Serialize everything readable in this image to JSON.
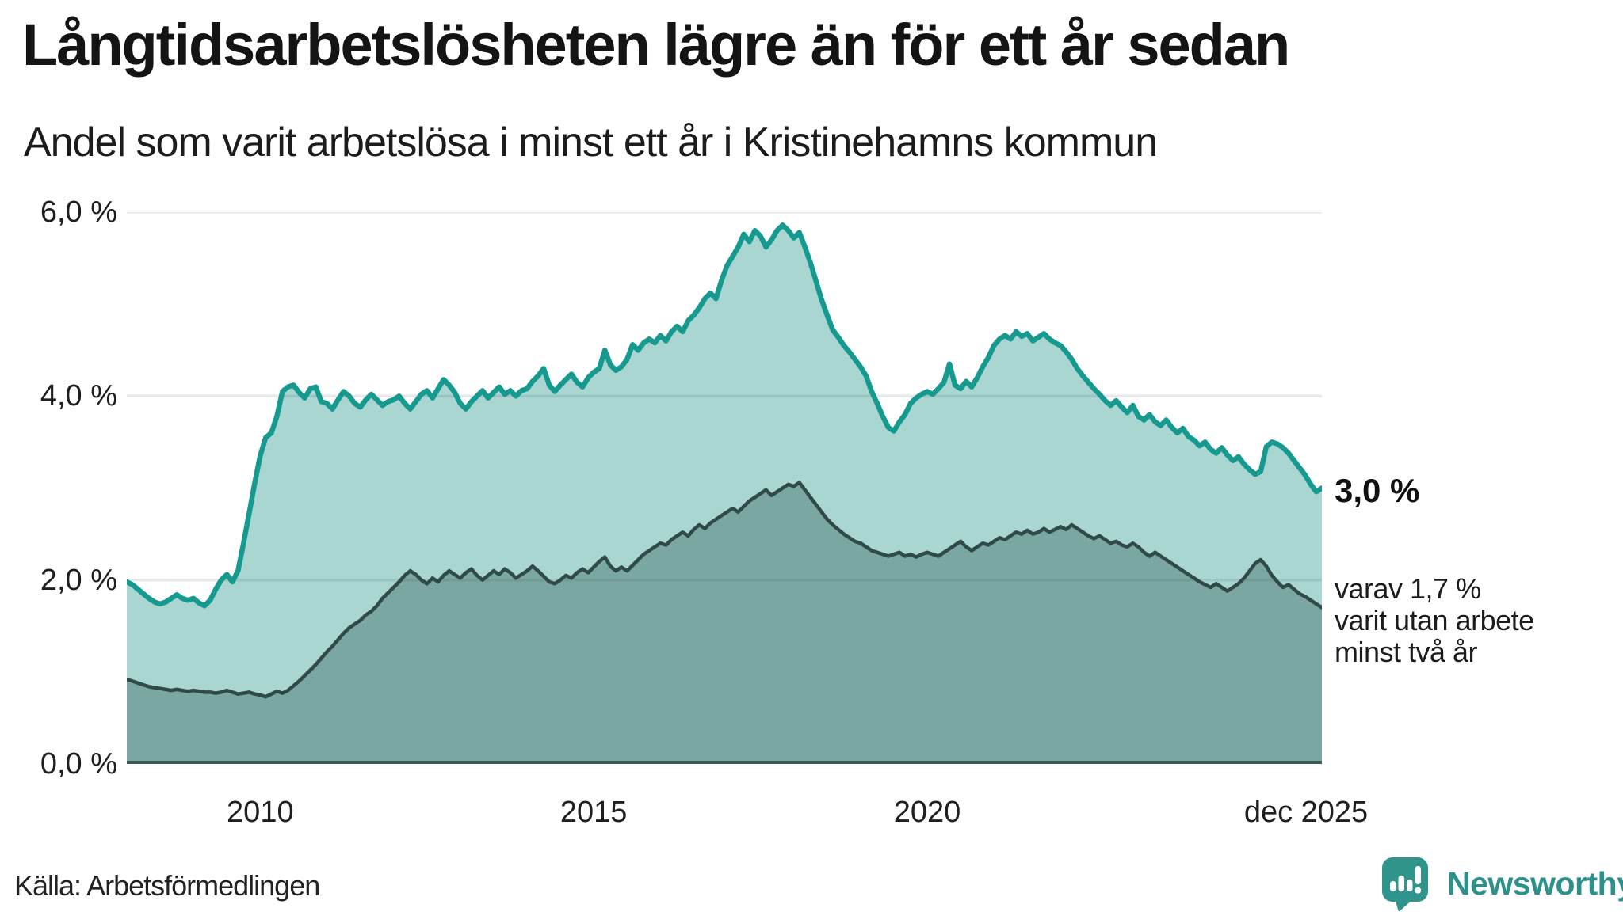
{
  "header": {
    "title": "Långtidsarbetslösheten lägre än för ett år sedan",
    "subtitle": "Andel som varit arbetslösa i minst ett år i Kristinehamns kommun"
  },
  "colors": {
    "line_total": "#169a8f",
    "fill_total": "#a9d6d0",
    "line_two_years": "#2f4a49",
    "fill_two_years": "#7aa7a1",
    "gridline": "rgba(70,80,92,0.13)",
    "baseline": "#3c5a57",
    "brand_teal": "#2d908a"
  },
  "chart_data": {
    "type": "area",
    "title": "Långtidsarbetslösheten lägre än för ett år sedan",
    "subtitle": "Andel som varit arbetslösa i minst ett år i Kristinehamns kommun",
    "unit": "%",
    "x_start": "2008-01",
    "x_end": "2025-12",
    "points_per_year": 12,
    "ylim": [
      0,
      6
    ],
    "grid": true,
    "yticks": [
      {
        "label": "0,0 %",
        "value": 0
      },
      {
        "label": "2,0 %",
        "value": 2
      },
      {
        "label": "4,0 %",
        "value": 4
      },
      {
        "label": "6,0 %",
        "value": 6
      }
    ],
    "xticks": [
      {
        "label": "2010",
        "month_index": 24,
        "dx": 0
      },
      {
        "label": "2015",
        "month_index": 84,
        "dx": 0
      },
      {
        "label": "2020",
        "month_index": 144,
        "dx": 0
      },
      {
        "label": "dec 2025",
        "month_index": 215,
        "dx": -20
      }
    ],
    "series": [
      {
        "name": "Arbetslösa minst ett år",
        "line_color": "#169a8f",
        "fill_color": "#a9d6d0",
        "line_width": 6.5,
        "values": [
          1.98,
          1.95,
          1.9,
          1.85,
          1.8,
          1.76,
          1.74,
          1.76,
          1.8,
          1.84,
          1.8,
          1.78,
          1.8,
          1.75,
          1.72,
          1.78,
          1.9,
          2.0,
          2.06,
          1.98,
          2.1,
          2.4,
          2.72,
          3.05,
          3.35,
          3.55,
          3.6,
          3.78,
          4.05,
          4.1,
          4.12,
          4.04,
          3.98,
          4.08,
          4.1,
          3.94,
          3.92,
          3.86,
          3.96,
          4.05,
          4.0,
          3.92,
          3.88,
          3.96,
          4.02,
          3.96,
          3.9,
          3.94,
          3.96,
          4.0,
          3.92,
          3.86,
          3.94,
          4.02,
          4.06,
          3.98,
          4.08,
          4.18,
          4.12,
          4.04,
          3.92,
          3.86,
          3.94,
          4.0,
          4.06,
          3.98,
          4.04,
          4.1,
          4.02,
          4.06,
          4.0,
          4.06,
          4.08,
          4.16,
          4.22,
          4.3,
          4.12,
          4.05,
          4.12,
          4.18,
          4.24,
          4.15,
          4.1,
          4.2,
          4.26,
          4.3,
          4.5,
          4.34,
          4.28,
          4.32,
          4.4,
          4.56,
          4.5,
          4.58,
          4.62,
          4.58,
          4.66,
          4.6,
          4.7,
          4.76,
          4.7,
          4.82,
          4.88,
          4.96,
          5.06,
          5.12,
          5.06,
          5.26,
          5.42,
          5.52,
          5.62,
          5.76,
          5.68,
          5.8,
          5.74,
          5.62,
          5.7,
          5.8,
          5.86,
          5.8,
          5.72,
          5.78,
          5.62,
          5.45,
          5.25,
          5.05,
          4.88,
          4.72,
          4.64,
          4.55,
          4.48,
          4.4,
          4.32,
          4.22,
          4.05,
          3.92,
          3.78,
          3.66,
          3.62,
          3.72,
          3.8,
          3.92,
          3.98,
          4.02,
          4.05,
          4.02,
          4.08,
          4.15,
          4.35,
          4.12,
          4.08,
          4.16,
          4.1,
          4.2,
          4.32,
          4.42,
          4.55,
          4.62,
          4.66,
          4.62,
          4.7,
          4.65,
          4.68,
          4.6,
          4.64,
          4.68,
          4.62,
          4.58,
          4.55,
          4.48,
          4.4,
          4.3,
          4.22,
          4.15,
          4.08,
          4.02,
          3.95,
          3.9,
          3.95,
          3.88,
          3.82,
          3.9,
          3.78,
          3.74,
          3.8,
          3.72,
          3.68,
          3.74,
          3.66,
          3.6,
          3.65,
          3.56,
          3.52,
          3.46,
          3.5,
          3.42,
          3.38,
          3.44,
          3.36,
          3.3,
          3.34,
          3.26,
          3.2,
          3.15,
          3.18,
          3.45,
          3.5,
          3.48,
          3.44,
          3.38,
          3.3,
          3.22,
          3.14,
          3.04,
          2.96,
          3.0
        ]
      },
      {
        "name": "Arbetslösa minst två år",
        "line_color": "#2f4a49",
        "fill_color": "#7aa7a1",
        "line_width": 4.5,
        "values": [
          0.92,
          0.9,
          0.88,
          0.86,
          0.84,
          0.83,
          0.82,
          0.81,
          0.8,
          0.81,
          0.8,
          0.79,
          0.8,
          0.79,
          0.78,
          0.78,
          0.77,
          0.78,
          0.8,
          0.78,
          0.76,
          0.77,
          0.78,
          0.76,
          0.75,
          0.73,
          0.76,
          0.79,
          0.77,
          0.8,
          0.85,
          0.9,
          0.96,
          1.02,
          1.08,
          1.15,
          1.22,
          1.28,
          1.35,
          1.42,
          1.48,
          1.52,
          1.56,
          1.62,
          1.66,
          1.72,
          1.8,
          1.86,
          1.92,
          1.98,
          2.05,
          2.1,
          2.06,
          2.0,
          1.96,
          2.02,
          1.98,
          2.05,
          2.1,
          2.06,
          2.02,
          2.08,
          2.12,
          2.05,
          2.0,
          2.05,
          2.1,
          2.06,
          2.12,
          2.08,
          2.02,
          2.06,
          2.1,
          2.15,
          2.1,
          2.04,
          1.98,
          1.96,
          2.0,
          2.05,
          2.02,
          2.08,
          2.12,
          2.08,
          2.14,
          2.2,
          2.25,
          2.15,
          2.1,
          2.14,
          2.1,
          2.16,
          2.22,
          2.28,
          2.32,
          2.36,
          2.4,
          2.38,
          2.44,
          2.48,
          2.52,
          2.48,
          2.55,
          2.6,
          2.56,
          2.62,
          2.66,
          2.7,
          2.74,
          2.78,
          2.74,
          2.8,
          2.86,
          2.9,
          2.94,
          2.98,
          2.92,
          2.96,
          3.0,
          3.04,
          3.02,
          3.06,
          2.98,
          2.9,
          2.82,
          2.74,
          2.66,
          2.6,
          2.55,
          2.5,
          2.46,
          2.42,
          2.4,
          2.36,
          2.32,
          2.3,
          2.28,
          2.26,
          2.28,
          2.3,
          2.26,
          2.28,
          2.25,
          2.28,
          2.3,
          2.28,
          2.26,
          2.3,
          2.34,
          2.38,
          2.42,
          2.36,
          2.32,
          2.36,
          2.4,
          2.38,
          2.42,
          2.46,
          2.44,
          2.48,
          2.52,
          2.5,
          2.54,
          2.5,
          2.52,
          2.56,
          2.52,
          2.55,
          2.58,
          2.55,
          2.6,
          2.56,
          2.52,
          2.48,
          2.45,
          2.48,
          2.44,
          2.4,
          2.42,
          2.38,
          2.36,
          2.4,
          2.36,
          2.3,
          2.26,
          2.3,
          2.26,
          2.22,
          2.18,
          2.14,
          2.1,
          2.06,
          2.02,
          1.98,
          1.95,
          1.92,
          1.96,
          1.92,
          1.88,
          1.92,
          1.96,
          2.02,
          2.1,
          2.18,
          2.22,
          2.15,
          2.05,
          1.98,
          1.92,
          1.95,
          1.9,
          1.85,
          1.82,
          1.78,
          1.74,
          1.7
        ]
      }
    ],
    "annotations": {
      "end_value_label": "3,0 %",
      "end_sub_lines": [
        "varav 1,7 %",
        "varit utan arbete",
        "minst två år"
      ]
    },
    "legend_position": "none"
  },
  "footer": {
    "source": "Källa: Arbetsförmedlingen",
    "brand": "Newsworthy"
  }
}
